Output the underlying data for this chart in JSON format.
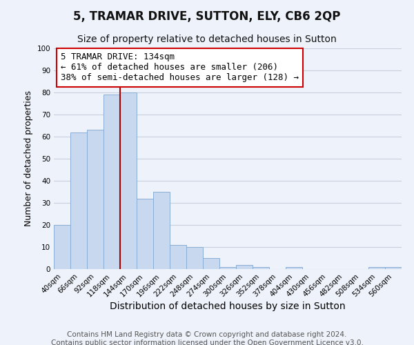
{
  "title": "5, TRAMAR DRIVE, SUTTON, ELY, CB6 2QP",
  "subtitle": "Size of property relative to detached houses in Sutton",
  "xlabel": "Distribution of detached houses by size in Sutton",
  "ylabel": "Number of detached properties",
  "bar_color": "#c8d8ee",
  "bar_edge_color": "#8aadd4",
  "bins": [
    "40sqm",
    "66sqm",
    "92sqm",
    "118sqm",
    "144sqm",
    "170sqm",
    "196sqm",
    "222sqm",
    "248sqm",
    "274sqm",
    "300sqm",
    "326sqm",
    "352sqm",
    "378sqm",
    "404sqm",
    "430sqm",
    "456sqm",
    "482sqm",
    "508sqm",
    "534sqm",
    "560sqm"
  ],
  "values": [
    20,
    62,
    63,
    79,
    80,
    32,
    35,
    11,
    10,
    5,
    1,
    2,
    1,
    0,
    1,
    0,
    0,
    0,
    0,
    1,
    1
  ],
  "vline_index": 4,
  "vline_color": "#aa0000",
  "ylim": [
    0,
    100
  ],
  "yticks": [
    0,
    10,
    20,
    30,
    40,
    50,
    60,
    70,
    80,
    90,
    100
  ],
  "annotation_box_text": "5 TRAMAR DRIVE: 134sqm\n← 61% of detached houses are smaller (206)\n38% of semi-detached houses are larger (128) →",
  "footer_line1": "Contains HM Land Registry data © Crown copyright and database right 2024.",
  "footer_line2": "Contains public sector information licensed under the Open Government Licence v3.0.",
  "title_fontsize": 12,
  "subtitle_fontsize": 10,
  "xlabel_fontsize": 10,
  "ylabel_fontsize": 9,
  "annotation_fontsize": 9,
  "tick_fontsize": 7.5,
  "footer_fontsize": 7.5,
  "background_color": "#eef2fa",
  "grid_color": "#c8d0e0",
  "plot_bg_color": "#eef2fa"
}
